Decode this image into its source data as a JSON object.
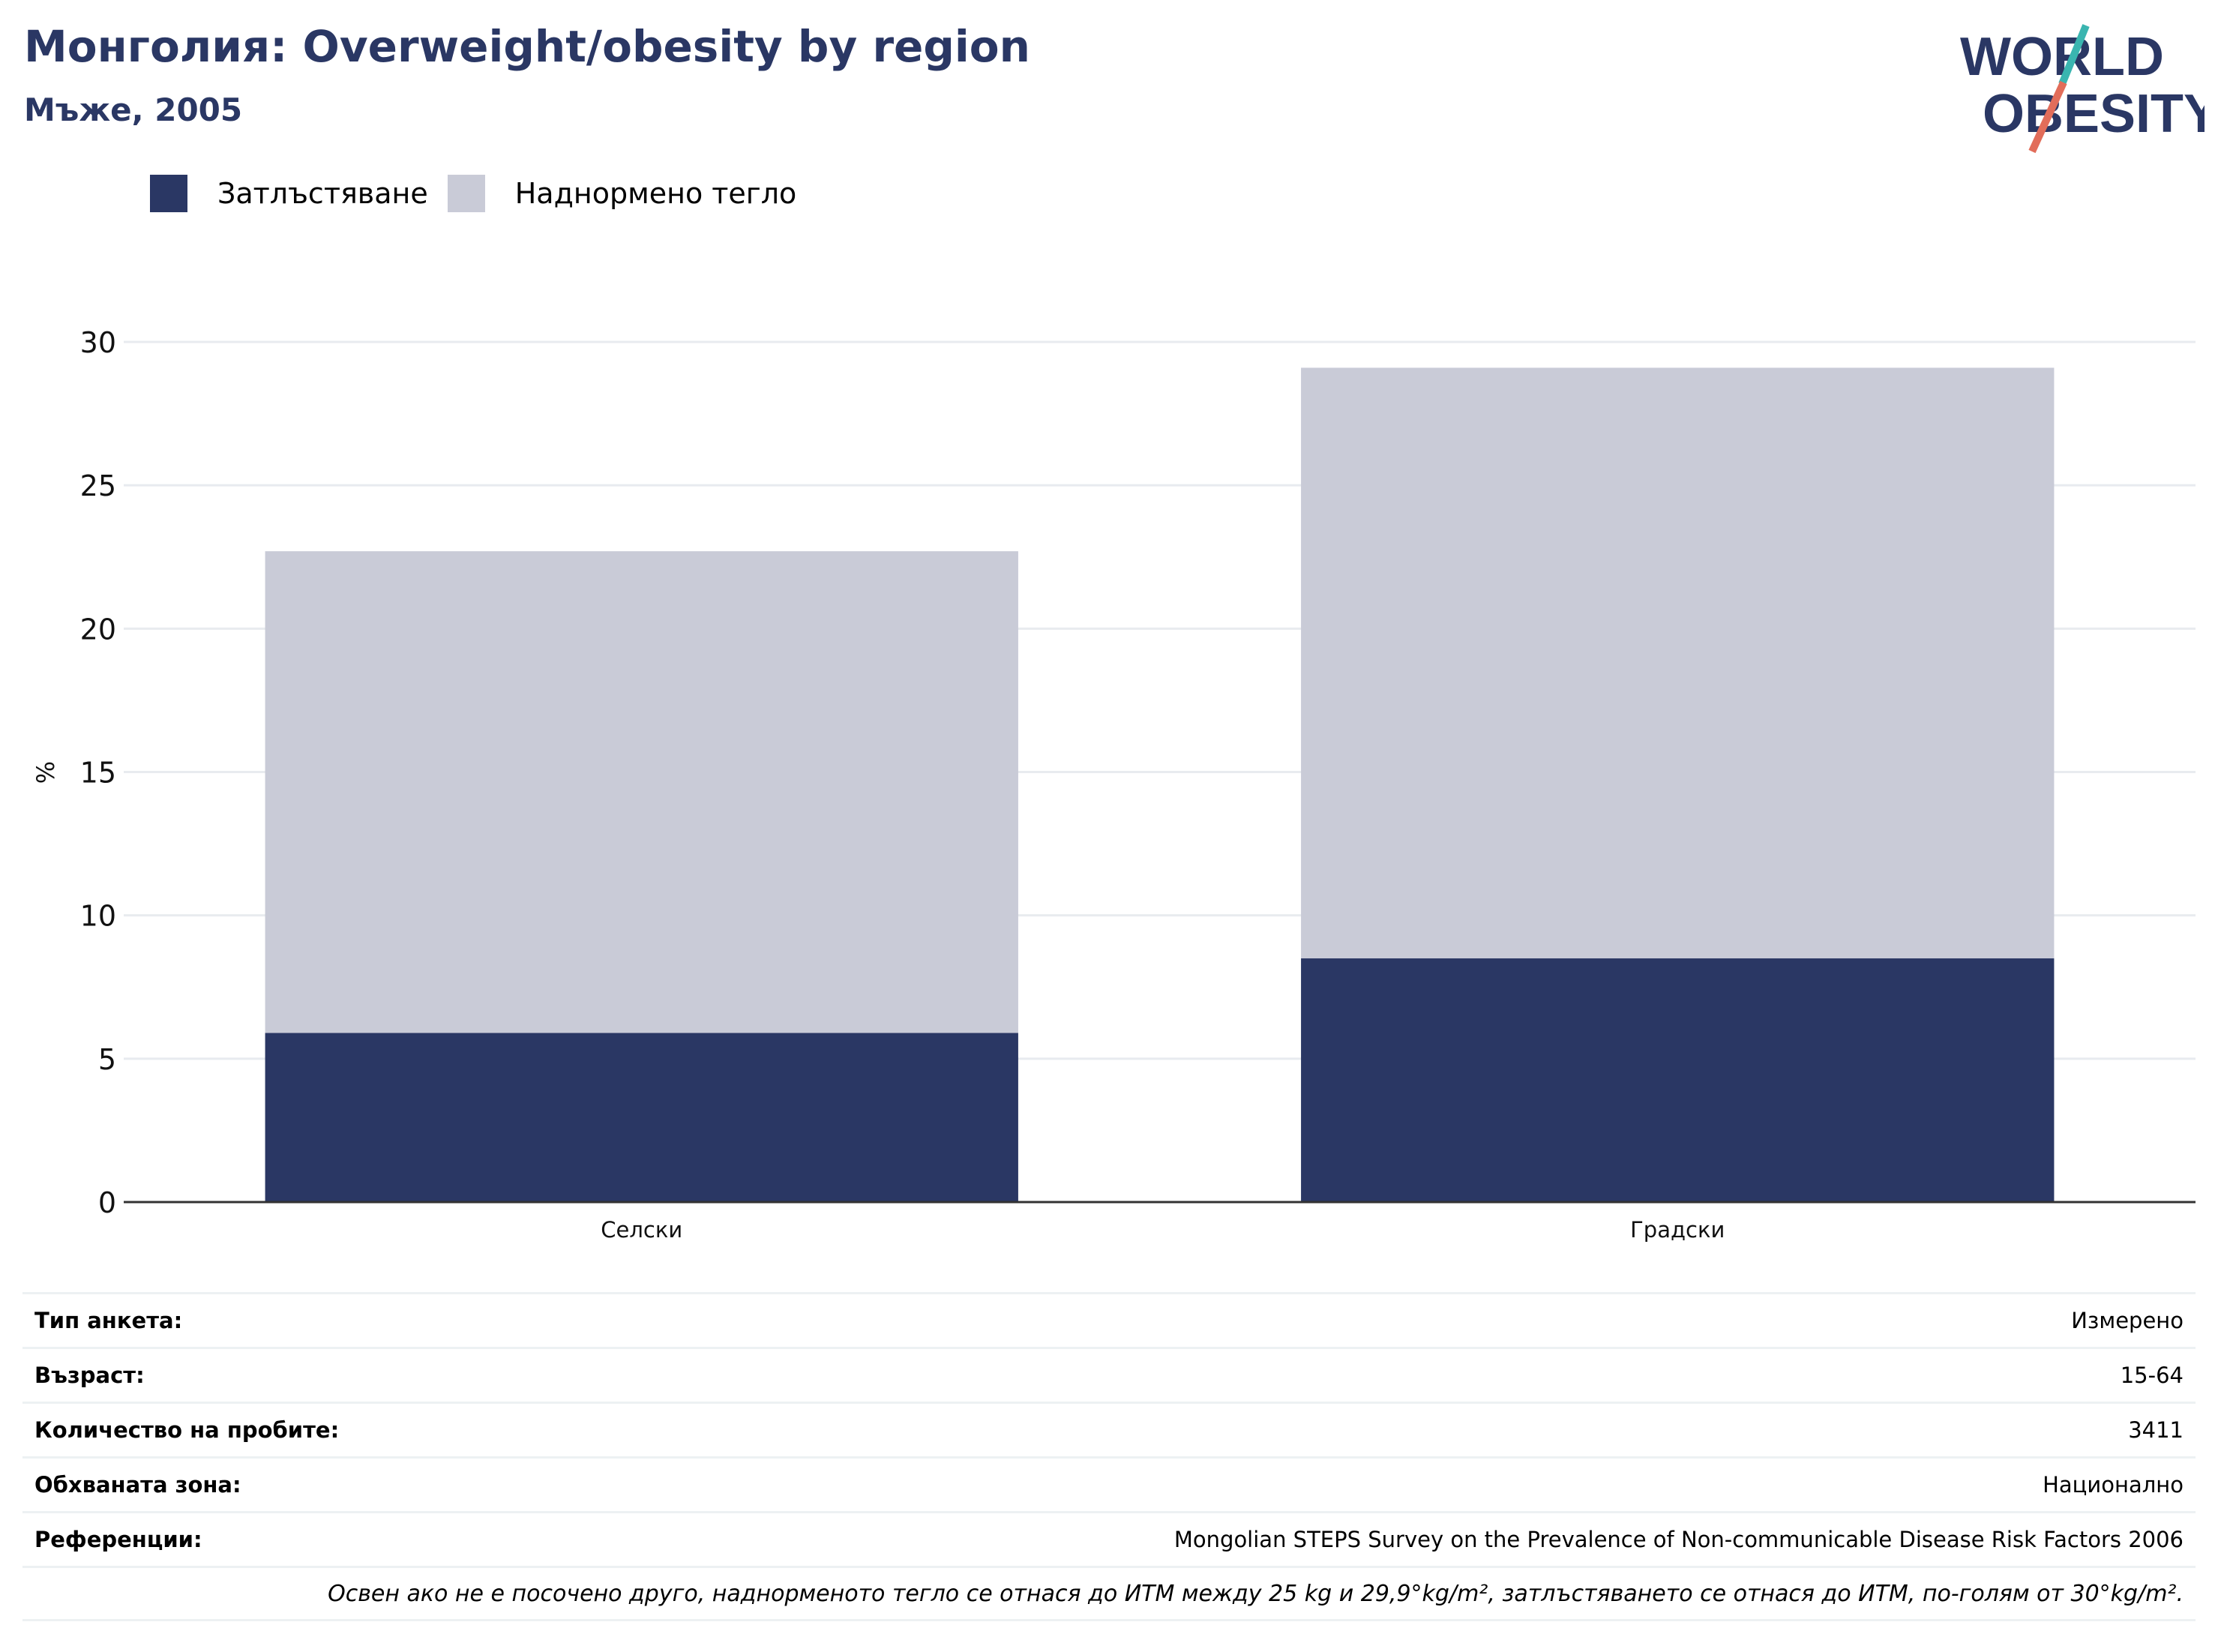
{
  "header": {
    "title": "Монголия: Overweight/obesity by region",
    "subtitle": "Мъже, 2005"
  },
  "logo": {
    "line1": "WORLD",
    "line2": "OBESITY",
    "icon": "world-obesity-logo"
  },
  "colors": {
    "obesity": "#2a3764",
    "overweight": "#c9cbd7",
    "accent_teal": "#3ab5b0",
    "accent_orange": "#e26d5a",
    "grid": "#e8ebef",
    "axis": "#333333"
  },
  "chart_data": {
    "type": "bar",
    "stacked": true,
    "categories": [
      "Селски",
      "Градски"
    ],
    "series": [
      {
        "name": "Затлъстяване",
        "values": [
          5.9,
          8.5
        ]
      },
      {
        "name": "Наднормено тегло",
        "values": [
          16.8,
          20.6
        ]
      }
    ],
    "ylabel": "%",
    "ylim": [
      0,
      30
    ],
    "yticks": [
      0,
      5,
      10,
      15,
      20,
      25,
      30
    ],
    "grid": true,
    "legend_position": "top-left"
  },
  "info": {
    "rows": [
      {
        "label": "Тип анкета:",
        "value": "Измерено"
      },
      {
        "label": "Възраст:",
        "value": "15-64"
      },
      {
        "label": "Количество на пробите:",
        "value": "3411"
      },
      {
        "label": "Обхваната зона:",
        "value": "Национално"
      },
      {
        "label": "Референции:",
        "value": "Mongolian STEPS Survey on the Prevalence of Non-communicable Disease Risk Factors 2006"
      }
    ],
    "note": "Освен ако не е посочено друго, наднорменото тегло се отнася до ИТМ между 25 kg и 29,9°kg/m², затлъстяването се отнася до ИТМ, по-голям от 30°kg/m²."
  }
}
